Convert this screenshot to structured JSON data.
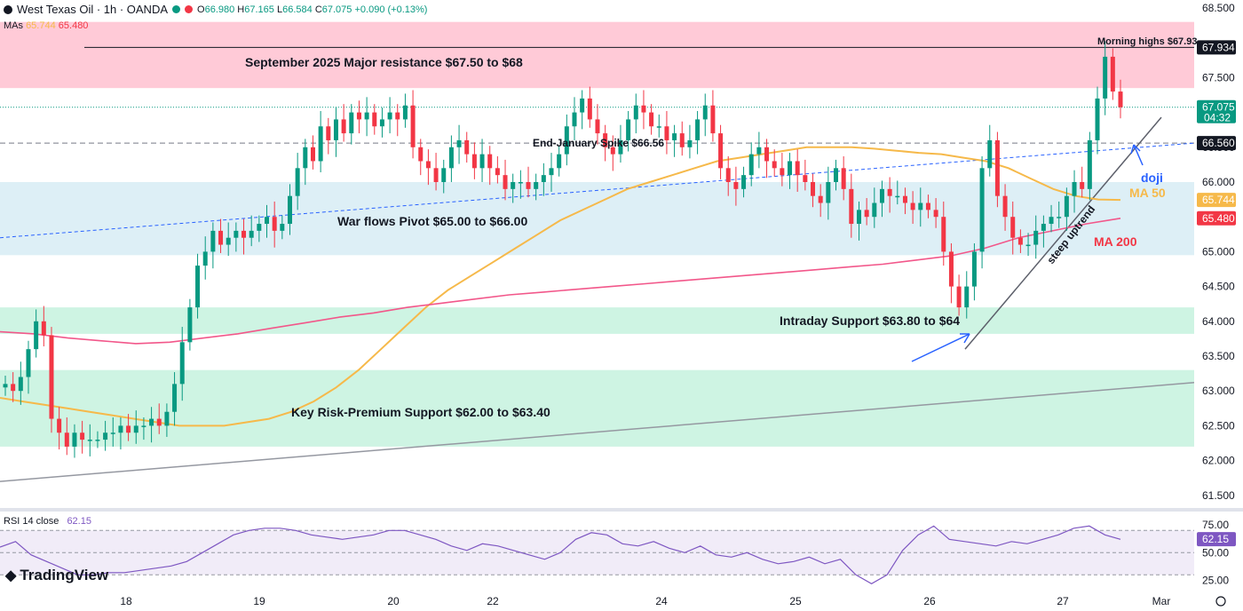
{
  "header": {
    "symbol": "West Texas Oil · 1h · OANDA",
    "open_label": "O",
    "open": "66.980",
    "high_label": "H",
    "high": "67.165",
    "low_label": "L",
    "low": "66.584",
    "close_label": "C",
    "close": "67.075",
    "change": "+0.090 (+0.13%)",
    "mas_label": "MAs",
    "ma50": "65.744",
    "ma200": "65.480"
  },
  "rsi": {
    "label": "RSI 14 close",
    "value": "62.15"
  },
  "brand": "TradingView",
  "colors": {
    "up": "#089981",
    "down": "#f23645",
    "ma50": "#f6b94a",
    "ma200": "#f2578a",
    "resistance_zone": "#ffc1d0",
    "pivot_zone": "#d9edf5",
    "support_zone": "#c9f3e0",
    "rsi_line": "#7e57c2",
    "annotation_blue": "#2962ff"
  },
  "chart_data": {
    "type": "candlestick",
    "title": "West Texas Oil · 1h · OANDA",
    "ylim": [
      61.5,
      68.5
    ],
    "yticks": [
      "68.500",
      "67.500",
      "67.000",
      "66.500",
      "66.000",
      "65.500",
      "65.000",
      "64.500",
      "64.000",
      "63.500",
      "63.000",
      "62.500",
      "62.000",
      "61.500"
    ],
    "xticks": [
      "18",
      "19",
      "20",
      "22",
      "24",
      "25",
      "26",
      "27",
      "Mar"
    ],
    "price_labels": [
      {
        "value": 67.934,
        "text": "67.934",
        "color": "#131722"
      },
      {
        "value": 67.075,
        "text": "67.075",
        "sub": "04:32",
        "color": "#089981"
      },
      {
        "value": 66.56,
        "text": "66.560",
        "color": "#131722"
      },
      {
        "value": 65.744,
        "text": "65.744",
        "color": "#f6b94a"
      },
      {
        "value": 65.48,
        "text": "65.480",
        "color": "#f23645"
      }
    ],
    "zones": [
      {
        "name": "resistance",
        "from": 67.35,
        "to": 68.3,
        "label": "September 2025 Major resistance $67.50 to $68"
      },
      {
        "name": "war-flows-pivot",
        "from": 64.95,
        "to": 66.0,
        "label": "War flows Pivot $65.00 to $66.00"
      },
      {
        "name": "intraday-support",
        "from": 63.82,
        "to": 64.2,
        "label": "Intraday Support $63.80 to $64"
      },
      {
        "name": "key-support",
        "from": 62.2,
        "to": 63.3,
        "label": "Key Risk-Premium Support $62.00 to $63.40"
      }
    ],
    "horizontal_lines": [
      {
        "name": "morning-highs",
        "value": 67.934,
        "label": "Morning highs $67.93"
      },
      {
        "name": "end-january-spike",
        "value": 66.56,
        "label": "End-January Spike $66.56"
      }
    ],
    "annotations": {
      "doji": "doji",
      "ma50": "MA 50",
      "ma200": "MA 200",
      "uptrend": "steep uptrend"
    },
    "closes": [
      63.1,
      63.0,
      63.2,
      63.6,
      64.0,
      63.8,
      62.6,
      62.4,
      62.2,
      62.4,
      62.3,
      62.3,
      62.3,
      62.4,
      62.4,
      62.5,
      62.4,
      62.5,
      62.5,
      62.6,
      62.5,
      62.7,
      63.1,
      63.7,
      64.2,
      64.8,
      65.0,
      65.3,
      65.1,
      65.2,
      65.3,
      65.2,
      65.3,
      65.4,
      65.5,
      65.3,
      65.4,
      65.8,
      66.2,
      66.5,
      66.3,
      66.8,
      66.6,
      66.9,
      66.7,
      67.0,
      66.9,
      67.0,
      66.8,
      66.9,
      67.0,
      66.9,
      67.1,
      66.5,
      66.3,
      66.2,
      66.0,
      66.2,
      66.5,
      66.6,
      66.4,
      66.2,
      66.4,
      66.2,
      66.1,
      65.9,
      66.0,
      66.0,
      65.9,
      66.0,
      66.1,
      66.2,
      66.4,
      66.8,
      67.0,
      67.2,
      66.9,
      66.7,
      66.5,
      66.4,
      66.6,
      66.9,
      67.1,
      67.0,
      66.8,
      66.8,
      66.6,
      66.7,
      66.5,
      66.6,
      66.9,
      67.1,
      66.7,
      66.2,
      66.0,
      65.9,
      66.1,
      66.4,
      66.5,
      66.3,
      66.2,
      66.1,
      66.3,
      66.1,
      66.0,
      65.8,
      65.7,
      66.0,
      66.2,
      65.9,
      65.4,
      65.6,
      65.5,
      65.7,
      65.9,
      65.8,
      65.8,
      65.7,
      65.6,
      65.7,
      65.6,
      65.5,
      65.0,
      64.5,
      64.2,
      64.5,
      65.0,
      66.2,
      66.6,
      65.8,
      65.5,
      65.2,
      65.1,
      65.1,
      65.3,
      65.4,
      65.5,
      65.5,
      65.8,
      66.0,
      65.9,
      66.6,
      67.2,
      67.8,
      67.3,
      67.075
    ],
    "ma50_values": [
      62.9,
      62.85,
      62.8,
      62.75,
      62.7,
      62.65,
      62.6,
      62.55,
      62.5,
      62.5,
      62.5,
      62.55,
      62.6,
      62.7,
      62.85,
      63.05,
      63.3,
      63.6,
      63.9,
      64.2,
      64.45,
      64.65,
      64.85,
      65.05,
      65.25,
      65.45,
      65.6,
      65.75,
      65.9,
      66.0,
      66.1,
      66.2,
      66.3,
      66.35,
      66.4,
      66.45,
      66.5,
      66.5,
      66.5,
      66.48,
      66.45,
      66.42,
      66.4,
      66.35,
      66.3,
      66.2,
      66.05,
      65.9,
      65.8,
      65.75,
      65.744
    ],
    "ma200_values": [
      63.85,
      63.82,
      63.76,
      63.72,
      63.68,
      63.7,
      63.76,
      63.82,
      63.9,
      63.98,
      64.06,
      64.12,
      64.2,
      64.26,
      64.32,
      64.38,
      64.42,
      64.46,
      64.5,
      64.54,
      64.58,
      64.62,
      64.66,
      64.7,
      64.74,
      64.78,
      64.82,
      64.88,
      64.94,
      65.05,
      65.2,
      65.3,
      65.4,
      65.48
    ],
    "rsi_values": [
      55,
      60,
      48,
      42,
      36,
      30,
      30,
      32,
      32,
      34,
      36,
      38,
      42,
      50,
      58,
      66,
      70,
      72,
      72,
      70,
      66,
      64,
      62,
      64,
      66,
      70,
      70,
      66,
      62,
      56,
      52,
      58,
      56,
      52,
      48,
      44,
      50,
      62,
      68,
      66,
      58,
      56,
      60,
      54,
      50,
      56,
      48,
      46,
      50,
      44,
      40,
      42,
      46,
      40,
      44,
      30,
      22,
      30,
      52,
      66,
      74,
      62,
      60,
      58,
      56,
      60,
      58,
      62,
      66,
      72,
      74,
      66,
      62
    ]
  }
}
